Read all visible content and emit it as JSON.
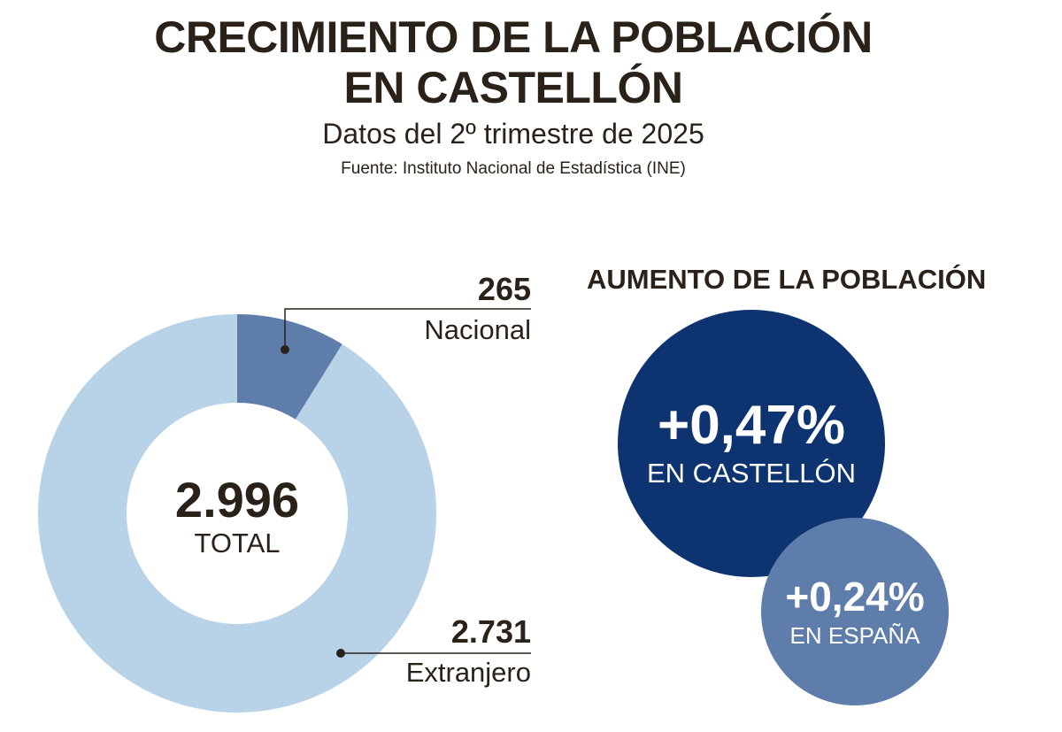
{
  "header": {
    "title_line1": "CRECIMIENTO DE LA POBLACIÓN",
    "title_line2": "EN CASTELLÓN",
    "subtitle": "Datos del 2º trimestre de 2025",
    "source": "Fuente: Instituto Nacional de Estadística (INE)"
  },
  "chart_data": {
    "type": "pie",
    "variant": "donut",
    "title": "CRECIMIENTO DE LA POBLACIÓN EN CASTELLÓN",
    "categories": [
      "Nacional",
      "Extranjero"
    ],
    "values": [
      265,
      2731
    ],
    "value_labels": [
      "265",
      "2.731"
    ],
    "total": 2996,
    "total_label": "2.996",
    "center_label": "TOTAL",
    "colors": [
      "#5f7dab",
      "#b8d2e7"
    ]
  },
  "growth": {
    "heading": "AUMENTO DE LA POBLACIÓN",
    "items": [
      {
        "value": "+0,47%",
        "region": "EN CASTELLÓN",
        "color": "#0d3470"
      },
      {
        "value": "+0,24%",
        "region": "EN ESPAÑA",
        "color": "#5f7dab"
      }
    ]
  }
}
